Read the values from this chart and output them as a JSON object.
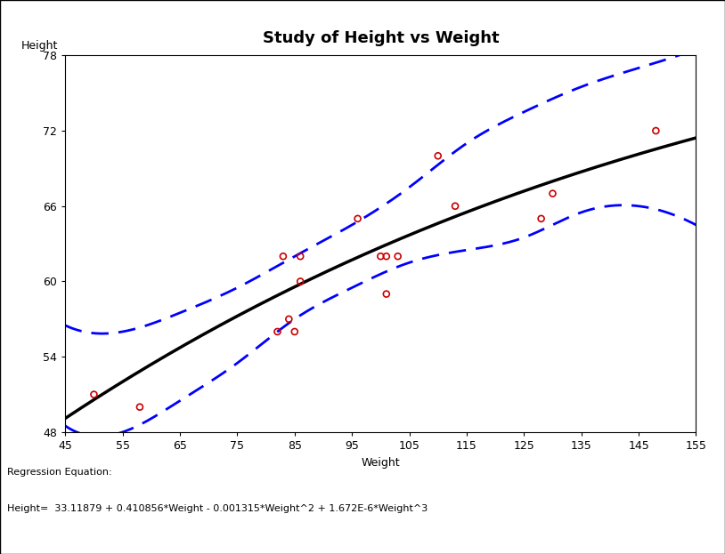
{
  "title": "Study of Height vs Weight",
  "xlabel": "Weight",
  "ylabel": "Height",
  "xlim": [
    45,
    155
  ],
  "ylim": [
    48,
    78
  ],
  "xticks": [
    45,
    55,
    65,
    75,
    85,
    95,
    105,
    115,
    125,
    135,
    145,
    155
  ],
  "yticks": [
    48,
    54,
    60,
    66,
    72,
    78
  ],
  "scatter_x": [
    50,
    58,
    82,
    83,
    84,
    85,
    86,
    86,
    96,
    100,
    101,
    101,
    103,
    110,
    113,
    128,
    130,
    148
  ],
  "scatter_y": [
    51,
    50,
    56,
    62,
    57,
    56,
    62,
    60,
    65,
    62,
    62,
    59,
    62,
    70,
    66,
    65,
    67,
    72
  ],
  "reg_coeffs": [
    33.11879,
    0.410856,
    -0.001315,
    1.672e-06
  ],
  "regression_equation": "Height=  33.11879 + 0.410856*Weight - 0.001315*Weight^2 + 1.672E-6*Weight^3",
  "curve_color": "#000000",
  "ci_color": "#0000ff",
  "scatter_color": "#cc0000",
  "background_color": "#ffffff",
  "title_fontsize": 13,
  "label_fontsize": 9,
  "tick_fontsize": 9,
  "annotation_fontsize": 8,
  "figure_width": 8.14,
  "figure_height": 6.23,
  "upper_ci_pts_x": [
    45,
    55,
    65,
    75,
    85,
    95,
    105,
    115,
    125,
    135,
    145,
    155
  ],
  "upper_ci_pts_y": [
    56.5,
    56.0,
    57.5,
    59.5,
    62.0,
    64.5,
    67.5,
    71.0,
    73.5,
    75.5,
    77.0,
    78.5
  ],
  "lower_ci_pts_x": [
    45,
    55,
    65,
    75,
    85,
    95,
    105,
    115,
    125,
    135,
    145,
    155
  ],
  "lower_ci_pts_y": [
    48.5,
    48.0,
    50.5,
    53.5,
    57.0,
    59.5,
    61.5,
    62.5,
    63.5,
    65.5,
    66.0,
    64.5
  ]
}
